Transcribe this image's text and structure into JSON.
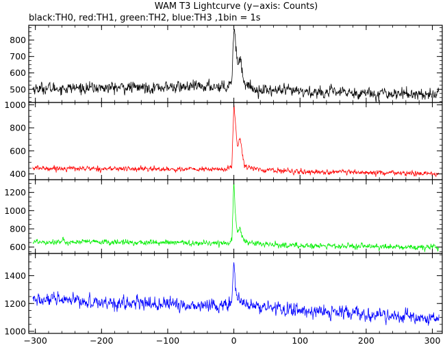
{
  "chart_data": {
    "type": "line",
    "title": "WAM T3 Lightcurve (y−axis: Counts)",
    "subtitle": "black:TH0, red:TH1, green:TH2, blue:TH3 ,1bin = 1s",
    "shared_x": {
      "xlim": [
        -310,
        315
      ],
      "ticks": [
        -300,
        -200,
        -100,
        0,
        100,
        200,
        300
      ]
    },
    "panels": [
      {
        "name": "TH0",
        "color": "#000000",
        "ylim": [
          420,
          890
        ],
        "yticks": [
          500,
          600,
          700,
          800
        ],
        "trend": [
          [
            -300,
            505
          ],
          [
            -60,
            515
          ],
          [
            -10,
            520
          ],
          [
            -3,
            560
          ],
          [
            0,
            870
          ],
          [
            2,
            830
          ],
          [
            4,
            700
          ],
          [
            6,
            660
          ],
          [
            8,
            680
          ],
          [
            10,
            700
          ],
          [
            12,
            620
          ],
          [
            16,
            540
          ],
          [
            30,
            500
          ],
          [
            100,
            485
          ],
          [
            200,
            478
          ],
          [
            305,
            470
          ]
        ],
        "noise": 22
      },
      {
        "name": "TH1",
        "color": "#ff0000",
        "ylim": [
          350,
          1020
        ],
        "yticks": [
          400,
          600,
          800,
          1000
        ],
        "trend": [
          [
            -300,
            450
          ],
          [
            -60,
            440
          ],
          [
            -10,
            440
          ],
          [
            -3,
            470
          ],
          [
            0,
            1000
          ],
          [
            2,
            880
          ],
          [
            4,
            700
          ],
          [
            6,
            640
          ],
          [
            8,
            700
          ],
          [
            10,
            720
          ],
          [
            12,
            600
          ],
          [
            16,
            480
          ],
          [
            30,
            440
          ],
          [
            100,
            420
          ],
          [
            200,
            410
          ],
          [
            305,
            400
          ]
        ],
        "noise": 14
      },
      {
        "name": "TH2",
        "color": "#00ee00",
        "ylim": [
          530,
          1340
        ],
        "yticks": [
          600,
          800,
          1000,
          1200
        ],
        "trend": [
          [
            -300,
            660
          ],
          [
            -60,
            645
          ],
          [
            -10,
            645
          ],
          [
            -3,
            680
          ],
          [
            0,
            1320
          ],
          [
            2,
            1000
          ],
          [
            4,
            820
          ],
          [
            6,
            760
          ],
          [
            8,
            800
          ],
          [
            10,
            780
          ],
          [
            14,
            700
          ],
          [
            20,
            650
          ],
          [
            40,
            630
          ],
          [
            100,
            615
          ],
          [
            200,
            605
          ],
          [
            305,
            595
          ]
        ],
        "noise": 20
      },
      {
        "name": "TH3",
        "color": "#0000ff",
        "ylim": [
          985,
          1560
        ],
        "yticks": [
          1000,
          1200,
          1400
        ],
        "trend": [
          [
            -300,
            1225
          ],
          [
            -200,
            1210
          ],
          [
            -60,
            1185
          ],
          [
            -10,
            1190
          ],
          [
            -3,
            1210
          ],
          [
            0,
            1540
          ],
          [
            2,
            1330
          ],
          [
            4,
            1260
          ],
          [
            6,
            1225
          ],
          [
            10,
            1215
          ],
          [
            20,
            1185
          ],
          [
            100,
            1150
          ],
          [
            200,
            1120
          ],
          [
            305,
            1085
          ]
        ],
        "noise": 30
      }
    ]
  }
}
